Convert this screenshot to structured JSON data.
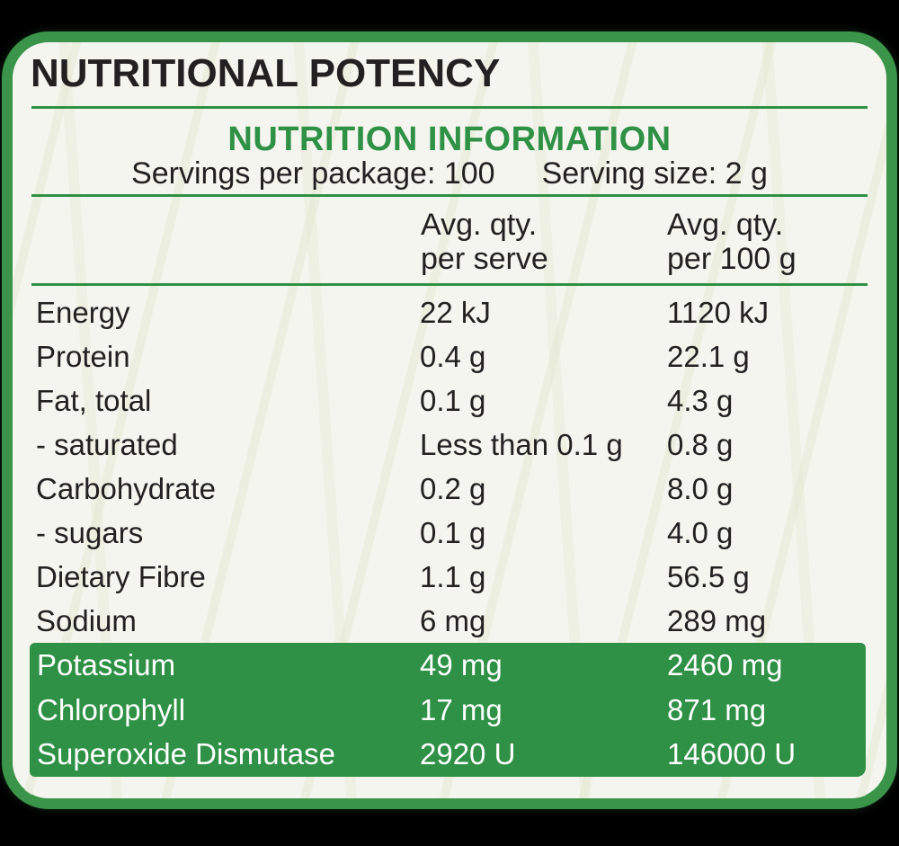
{
  "colors": {
    "green": "#2f9145",
    "border_green": "#3a9449",
    "panel_bg": "#f4f5ef",
    "text_dark": "#232021",
    "band_text": "#ffffff",
    "outside_bg": "#000000"
  },
  "label": {
    "title": "NUTRITIONAL POTENCY",
    "heading": "NUTRITION INFORMATION",
    "servings_per_package": "Servings per package: 100",
    "serving_size": "Serving size: 2 g"
  },
  "table": {
    "column_headers": {
      "per_serve": {
        "line1": "Avg. qty.",
        "line2": "per serve"
      },
      "per_100g": {
        "line1": "Avg. qty.",
        "line2": "per 100 g"
      }
    },
    "rows": [
      {
        "label": "Energy",
        "per_serve": "22 kJ",
        "per_100g": "1120 kJ",
        "highlight": false
      },
      {
        "label": "Protein",
        "per_serve": "0.4 g",
        "per_100g": "22.1 g",
        "highlight": false
      },
      {
        "label": "Fat, total",
        "per_serve": "0.1 g",
        "per_100g": "4.3 g",
        "highlight": false
      },
      {
        "label": "- saturated",
        "per_serve": "Less than 0.1 g",
        "per_100g": "0.8 g",
        "highlight": false
      },
      {
        "label": "Carbohydrate",
        "per_serve": "0.2 g",
        "per_100g": "8.0 g",
        "highlight": false
      },
      {
        "label": "- sugars",
        "per_serve": "0.1 g",
        "per_100g": "4.0 g",
        "highlight": false
      },
      {
        "label": "Dietary Fibre",
        "per_serve": "1.1 g",
        "per_100g": "56.5 g",
        "highlight": false
      },
      {
        "label": "Sodium",
        "per_serve": "6 mg",
        "per_100g": "289 mg",
        "highlight": false
      },
      {
        "label": "Potassium",
        "per_serve": "49 mg",
        "per_100g": "2460 mg",
        "highlight": true
      },
      {
        "label": "Chlorophyll",
        "per_serve": "17 mg",
        "per_100g": "871 mg",
        "highlight": true
      },
      {
        "label": "Superoxide Dismutase",
        "per_serve": "2920 U",
        "per_100g": "146000 U",
        "highlight": true
      }
    ]
  }
}
